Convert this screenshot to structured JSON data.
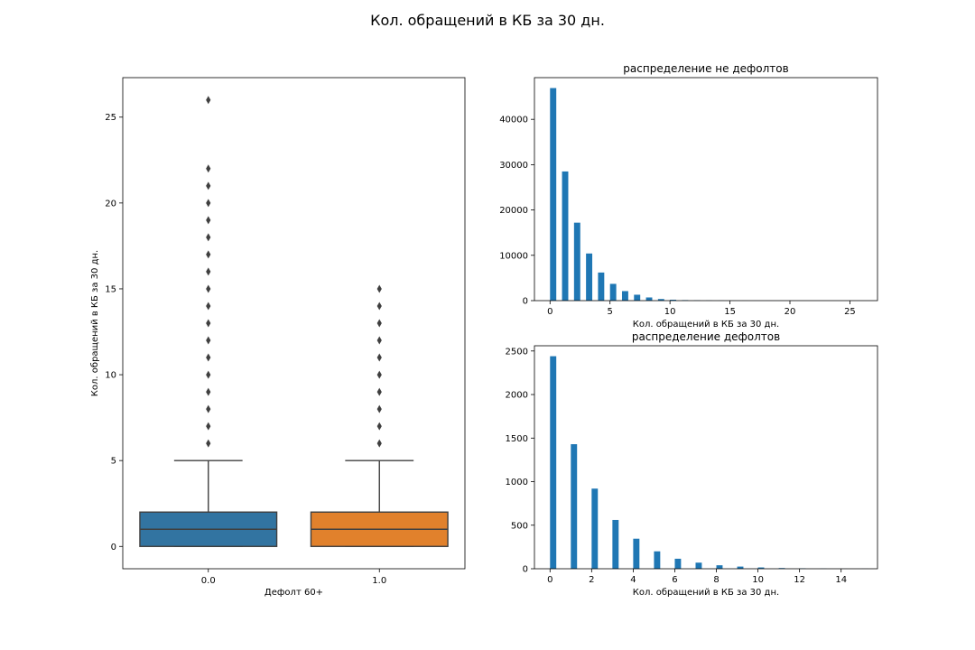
{
  "figure": {
    "title": "Кол. обращений в КБ за 30 дн."
  },
  "chart_data": [
    {
      "type": "box",
      "title": "",
      "xlabel": "Дефолт 60+",
      "ylabel": "Кол. обращений в КБ за 30 дн.",
      "categories": [
        "0.0",
        "1.0"
      ],
      "ylim": [
        -1.3,
        27.3
      ],
      "yticks": [
        0,
        5,
        10,
        15,
        20,
        25
      ],
      "series": [
        {
          "color": "#3274a1",
          "q1": 0,
          "median": 1,
          "q3": 2,
          "whisker_low": 0,
          "whisker_high": 5,
          "outliers": [
            6,
            7,
            8,
            9,
            10,
            11,
            12,
            13,
            14,
            15,
            16,
            17,
            18,
            19,
            20,
            21,
            22,
            26
          ]
        },
        {
          "color": "#e1812c",
          "q1": 0,
          "median": 1,
          "q3": 2,
          "whisker_low": 0,
          "whisker_high": 5,
          "outliers": [
            6,
            7,
            8,
            9,
            10,
            11,
            12,
            13,
            14,
            15
          ]
        }
      ],
      "grid": false
    },
    {
      "type": "bar",
      "title": "распределение не дефолтов",
      "xlabel": "Кол. обращений в КБ за 30 дн.",
      "ylabel": "",
      "color": "#1f77b4",
      "x": [
        0,
        1,
        2,
        3,
        4,
        5,
        6,
        7,
        8,
        9,
        10,
        11,
        12,
        13,
        14,
        15,
        16,
        17,
        18,
        19,
        20,
        21,
        22,
        26
      ],
      "values": [
        46900,
        28500,
        17200,
        10400,
        6200,
        3700,
        2100,
        1300,
        700,
        350,
        200,
        110,
        60,
        35,
        20,
        12,
        8,
        5,
        3,
        2,
        2,
        1,
        1,
        1
      ],
      "xlim": [
        -1.3,
        27.3
      ],
      "ylim": [
        0,
        49200
      ],
      "xticks": [
        0,
        5,
        10,
        15,
        20,
        25
      ],
      "yticks": [
        0,
        10000,
        20000,
        30000,
        40000
      ],
      "grid": false
    },
    {
      "type": "bar",
      "title": "распределение дефолтов",
      "xlabel": "Кол. обращений в КБ за 30 дн.",
      "ylabel": "",
      "color": "#1f77b4",
      "x": [
        0,
        1,
        2,
        3,
        4,
        5,
        6,
        7,
        8,
        9,
        10,
        11,
        12,
        13,
        14,
        15
      ],
      "values": [
        2440,
        1430,
        920,
        560,
        345,
        200,
        115,
        70,
        40,
        25,
        15,
        8,
        5,
        2,
        1,
        1
      ],
      "xlim": [
        -0.75,
        15.75
      ],
      "ylim": [
        0,
        2560
      ],
      "xticks": [
        0,
        2,
        4,
        6,
        8,
        10,
        12,
        14
      ],
      "yticks": [
        0,
        500,
        1000,
        1500,
        2000,
        2500
      ],
      "grid": false
    }
  ]
}
